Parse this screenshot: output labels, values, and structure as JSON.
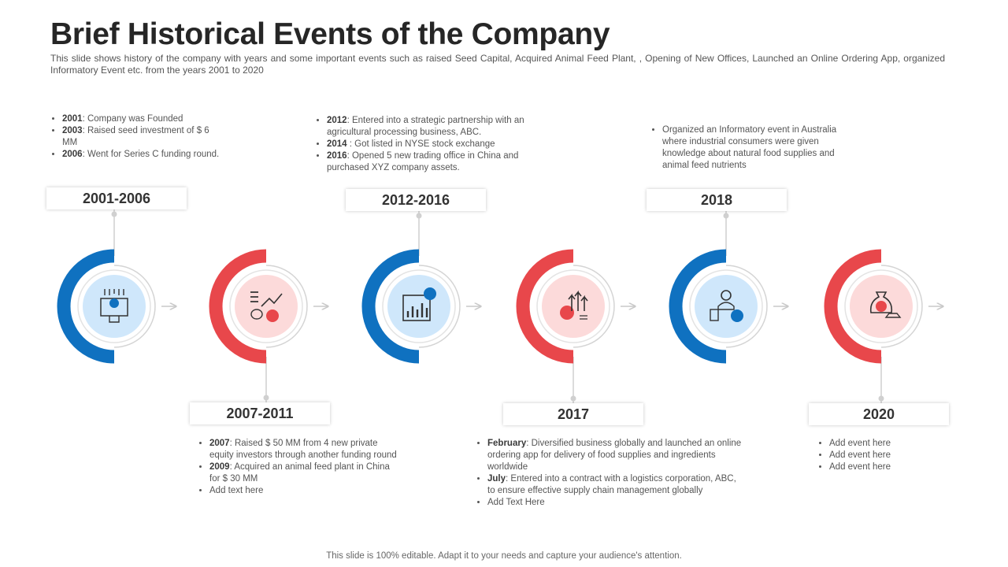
{
  "title": "Brief Historical Events of the Company",
  "subtitle": "This slide shows history of the company with years and some important events  such as raised Seed Capital, Acquired Animal Feed Plant, , Opening of New Offices, Launched an Online Ordering App, organized Informatory Event etc. from the years 2001 to 2020",
  "colors": {
    "blue": "#0f71c0",
    "red": "#e8474b",
    "blue_fill": "#cfe7fb",
    "red_fill": "#fcdada"
  },
  "milestones": [
    {
      "period": "2001-2006",
      "color": "blue",
      "icon": "investment-funding-icon",
      "events": [
        {
          "year": "2001",
          "text": ": Company was Founded"
        },
        {
          "year": "2003",
          "text": ": Raised seed investment of $ 6 MM"
        },
        {
          "year": "2006",
          "text": ": Went for Series C funding round."
        }
      ]
    },
    {
      "period": "2007-2011",
      "color": "red",
      "icon": "growth-chart-money-icon",
      "events": [
        {
          "year": "2007",
          "text": ": Raised $ 50 MM from 4 new private equity investors through another funding round"
        },
        {
          "year": "2009",
          "text": ": Acquired an animal feed plant in China for $ 30 MM"
        },
        {
          "year": "",
          "text": "Add text here"
        }
      ]
    },
    {
      "period": "2012-2016",
      "color": "blue",
      "icon": "financial-report-icon",
      "events": [
        {
          "year": "2012",
          "text": ": Entered into a strategic partnership with an agricultural processing business, ABC."
        },
        {
          "year": "2014",
          "text": " : Got listed in NYSE stock exchange"
        },
        {
          "year": "2016",
          "text": ": Opened 5 new trading office in China and purchased XYZ company assets."
        }
      ]
    },
    {
      "period": "2017",
      "color": "red",
      "icon": "business-growth-gear-icon",
      "events": [
        {
          "year": "February",
          "text": ": Diversified business globally and launched an online ordering app for delivery of food supplies and ingredients worldwide"
        },
        {
          "year": "July",
          "text": ": Entered into a contract with a logistics corporation, ABC, to ensure effective supply chain management globally"
        },
        {
          "year": "",
          "text": "Add Text Here"
        }
      ]
    },
    {
      "period": "2018",
      "color": "blue",
      "icon": "informatory-event-presenter-icon",
      "events": [
        {
          "year": "",
          "text": "Organized an Informatory event in Australia where industrial consumers were given knowledge about natural food supplies and animal feed nutrients"
        }
      ]
    },
    {
      "period": "2020",
      "color": "red",
      "icon": "money-bag-gold-icon",
      "events": [
        {
          "year": "",
          "text": "Add event here"
        },
        {
          "year": "",
          "text": "Add event here"
        },
        {
          "year": "",
          "text": "Add event here"
        }
      ]
    }
  ],
  "footer": "This slide is 100% editable. Adapt it to your needs and capture your audience's attention."
}
